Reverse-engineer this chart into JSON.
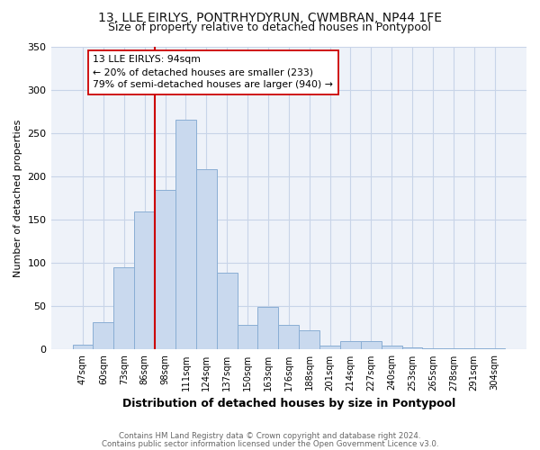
{
  "title1": "13, LLE EIRLYS, PONTRHYDYRUN, CWMBRAN, NP44 1FE",
  "title2": "Size of property relative to detached houses in Pontypool",
  "xlabel": "Distribution of detached houses by size in Pontypool",
  "ylabel": "Number of detached properties",
  "bar_labels": [
    "47sqm",
    "60sqm",
    "73sqm",
    "86sqm",
    "98sqm",
    "111sqm",
    "124sqm",
    "137sqm",
    "150sqm",
    "163sqm",
    "176sqm",
    "188sqm",
    "201sqm",
    "214sqm",
    "227sqm",
    "240sqm",
    "253sqm",
    "265sqm",
    "278sqm",
    "291sqm",
    "304sqm"
  ],
  "bar_values": [
    6,
    32,
    95,
    159,
    184,
    265,
    208,
    89,
    28,
    49,
    28,
    22,
    5,
    10,
    10,
    5,
    3,
    1,
    1,
    1,
    1
  ],
  "bar_color": "#c9d9ee",
  "bar_edge_color": "#8aaed4",
  "vline_x_index": 4,
  "vline_color": "#cc0000",
  "annotation_line1": "13 LLE EIRLYS: 94sqm",
  "annotation_line2": "← 20% of detached houses are smaller (233)",
  "annotation_line3": "79% of semi-detached houses are larger (940) →",
  "annotation_box_color": "white",
  "annotation_box_edgecolor": "#cc0000",
  "ylim": [
    0,
    350
  ],
  "yticks": [
    0,
    50,
    100,
    150,
    200,
    250,
    300,
    350
  ],
  "footer1": "Contains HM Land Registry data © Crown copyright and database right 2024.",
  "footer2": "Contains public sector information licensed under the Open Government Licence v3.0.",
  "bg_color": "#ffffff",
  "plot_bg_color": "#eef2f9",
  "grid_color": "#c8d4e8",
  "title1_fontsize": 10,
  "title2_fontsize": 9
}
